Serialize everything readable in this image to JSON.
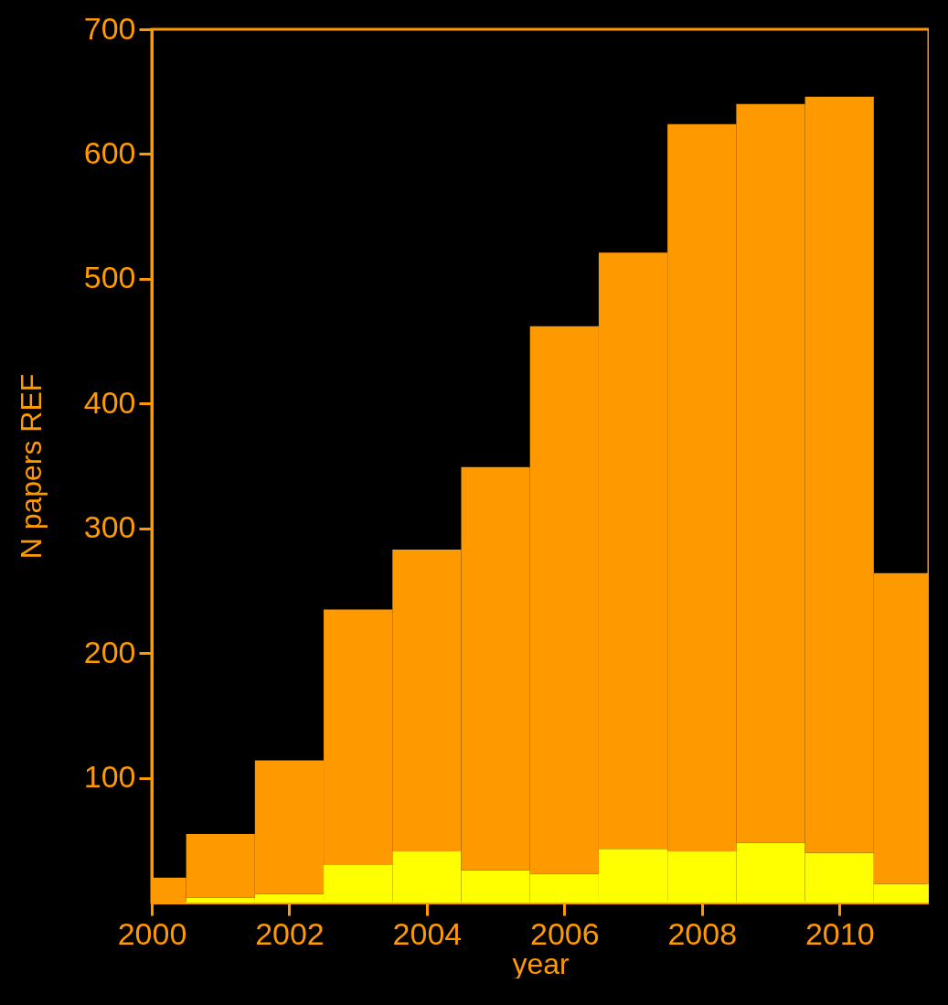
{
  "chart_data": {
    "type": "bar",
    "xlabel": "year",
    "ylabel": "N papers REF",
    "x": [
      2000,
      2001,
      2002,
      2003,
      2004,
      2005,
      2006,
      2007,
      2008,
      2009,
      2010,
      2011
    ],
    "series": [
      {
        "color": "#ffff00",
        "values": [
          0,
          4,
          7,
          30,
          41,
          26,
          23,
          43,
          41,
          48,
          40,
          15
        ]
      },
      {
        "color": "#ff9900",
        "values": [
          20,
          51,
          107,
          205,
          242,
          323,
          439,
          478,
          583,
          592,
          606,
          249
        ]
      }
    ],
    "xlim": [
      2000,
      2011.3
    ],
    "ylim": [
      0,
      700
    ],
    "xticks": [
      2000,
      2002,
      2004,
      2006,
      2008,
      2010
    ],
    "yticks": [
      100,
      200,
      300,
      400,
      500,
      600,
      700
    ],
    "stacked": true
  }
}
